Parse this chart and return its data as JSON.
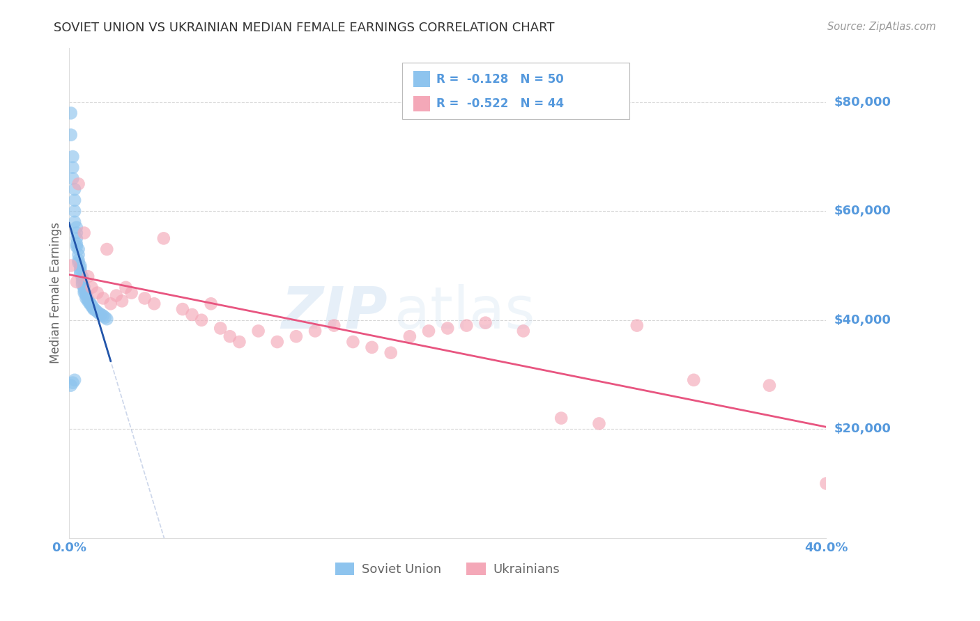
{
  "title": "SOVIET UNION VS UKRAINIAN MEDIAN FEMALE EARNINGS CORRELATION CHART",
  "source": "Source: ZipAtlas.com",
  "ylabel": "Median Female Earnings",
  "xlim": [
    0.0,
    0.4
  ],
  "ylim": [
    0,
    90000
  ],
  "ytick_values": [
    20000,
    40000,
    60000,
    80000
  ],
  "ytick_labels": [
    "$20,000",
    "$40,000",
    "$60,000",
    "$80,000"
  ],
  "background_color": "#ffffff",
  "grid_color": "#cccccc",
  "blue_color": "#8ec4ee",
  "pink_color": "#f4a8b8",
  "blue_line_color": "#2255aa",
  "pink_line_color": "#e85580",
  "blue_dashed_color": "#aabbdd",
  "title_color": "#333333",
  "source_color": "#999999",
  "axis_label_color": "#666666",
  "tick_label_color": "#5599dd",
  "legend_r1": "-0.128",
  "legend_n1": "50",
  "legend_r2": "-0.522",
  "legend_n2": "44",
  "soviet_x": [
    0.001,
    0.001,
    0.002,
    0.002,
    0.002,
    0.003,
    0.003,
    0.003,
    0.003,
    0.004,
    0.004,
    0.004,
    0.004,
    0.004,
    0.005,
    0.005,
    0.005,
    0.005,
    0.006,
    0.006,
    0.006,
    0.006,
    0.007,
    0.007,
    0.007,
    0.007,
    0.008,
    0.008,
    0.008,
    0.009,
    0.009,
    0.009,
    0.01,
    0.01,
    0.011,
    0.011,
    0.012,
    0.012,
    0.013,
    0.013,
    0.014,
    0.015,
    0.016,
    0.017,
    0.018,
    0.019,
    0.02,
    0.001,
    0.002,
    0.003
  ],
  "soviet_y": [
    78000,
    74000,
    70000,
    68000,
    66000,
    64000,
    62000,
    60000,
    58000,
    57000,
    56000,
    55000,
    54000,
    53500,
    53000,
    52000,
    51000,
    50500,
    50000,
    49500,
    49000,
    48500,
    48000,
    47500,
    47000,
    46500,
    46000,
    45500,
    45000,
    44800,
    44500,
    44000,
    43800,
    43500,
    43200,
    43000,
    42800,
    42500,
    42200,
    42000,
    41800,
    41500,
    41200,
    41000,
    40800,
    40500,
    40200,
    28000,
    28500,
    29000
  ],
  "ukrainian_x": [
    0.001,
    0.004,
    0.005,
    0.008,
    0.01,
    0.012,
    0.015,
    0.018,
    0.02,
    0.022,
    0.025,
    0.028,
    0.03,
    0.033,
    0.04,
    0.045,
    0.05,
    0.06,
    0.065,
    0.07,
    0.075,
    0.08,
    0.085,
    0.09,
    0.1,
    0.11,
    0.12,
    0.13,
    0.14,
    0.15,
    0.16,
    0.17,
    0.18,
    0.19,
    0.2,
    0.21,
    0.22,
    0.24,
    0.26,
    0.28,
    0.3,
    0.33,
    0.37,
    0.4
  ],
  "ukrainian_y": [
    50000,
    47000,
    65000,
    56000,
    48000,
    46000,
    45000,
    44000,
    53000,
    43000,
    44500,
    43500,
    46000,
    45000,
    44000,
    43000,
    55000,
    42000,
    41000,
    40000,
    43000,
    38500,
    37000,
    36000,
    38000,
    36000,
    37000,
    38000,
    39000,
    36000,
    35000,
    34000,
    37000,
    38000,
    38500,
    39000,
    39500,
    38000,
    22000,
    21000,
    39000,
    29000,
    28000,
    10000
  ]
}
